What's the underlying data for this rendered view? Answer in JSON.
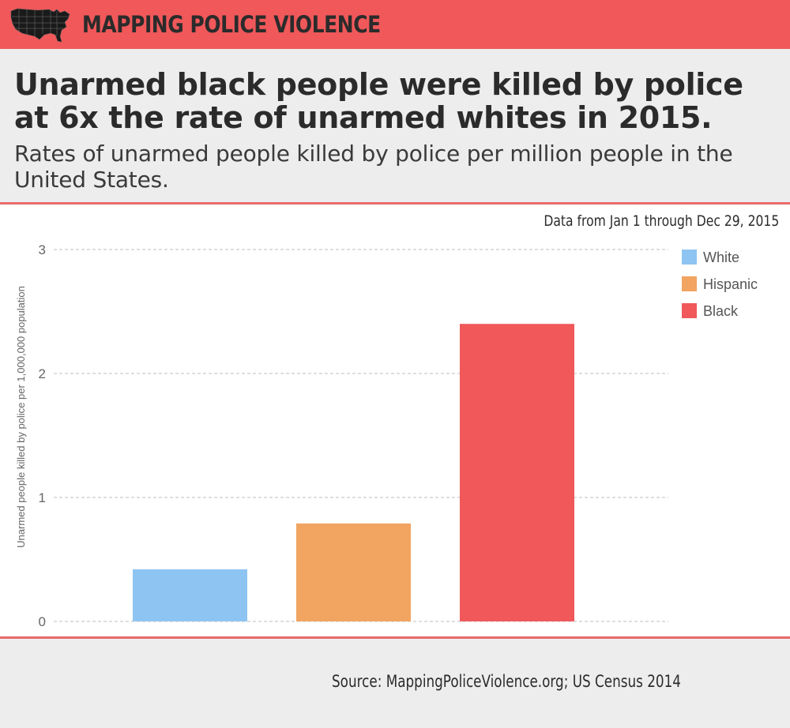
{
  "header": {
    "brand": "MAPPING POLICE VIOLENCE",
    "icon": "us-map-icon",
    "background_color": "#f0585a"
  },
  "headline": "Unarmed black people were killed by police at 6x the rate of unarmed whites in 2015.",
  "subheadline": "Rates of unarmed people killed by police per million people in the United States.",
  "data_note": "Data from Jan 1 through Dec 29, 2015",
  "source": "Source: MappingPoliceViolence.org; US Census 2014",
  "chart_data": {
    "type": "bar",
    "title": "",
    "xlabel": "",
    "ylabel": "Unarmed people killed by police per 1,000,000 population",
    "ylim": [
      0,
      3
    ],
    "yticks": [
      "0",
      "1",
      "2",
      "3"
    ],
    "grid": true,
    "grid_style": "dashed",
    "legend_position": "top-right",
    "categories": [
      "White",
      "Hispanic",
      "Black"
    ],
    "values": [
      0.42,
      0.79,
      2.4
    ],
    "colors": [
      "#8ec4f2",
      "#f2a461",
      "#f0585a"
    ],
    "legend": [
      {
        "label": "White",
        "color": "#8ec4f2"
      },
      {
        "label": "Hispanic",
        "color": "#f2a461"
      },
      {
        "label": "Black",
        "color": "#f0585a"
      }
    ]
  }
}
